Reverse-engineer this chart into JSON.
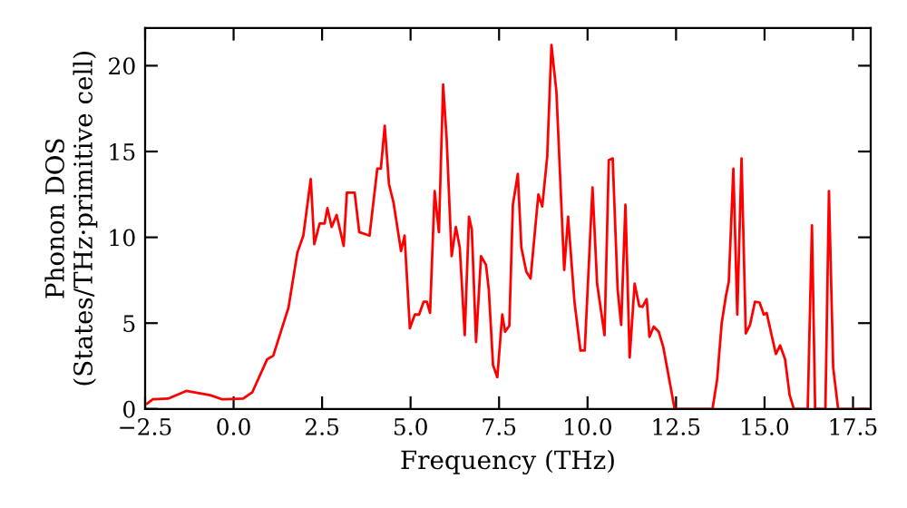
{
  "chart_data": {
    "type": "line",
    "xlabel": "Frequency (THz)",
    "ylabel": "Phonon DOS\n(States/THz·primitive cell)",
    "xlim": [
      -2.5,
      18
    ],
    "ylim": [
      0,
      22.2
    ],
    "xticks": [
      {
        "value": -2.5,
        "label": "−2.5"
      },
      {
        "value": 0,
        "label": "0.0"
      },
      {
        "value": 2.5,
        "label": "2.5"
      },
      {
        "value": 5,
        "label": "5.0"
      },
      {
        "value": 7.5,
        "label": "7.5"
      },
      {
        "value": 10,
        "label": "10.0"
      },
      {
        "value": 12.5,
        "label": "12.5"
      },
      {
        "value": 15,
        "label": "15.0"
      },
      {
        "value": 17.5,
        "label": "17.5"
      }
    ],
    "yticks": [
      0,
      5,
      10,
      15,
      20
    ],
    "grid": false,
    "legend": false,
    "line_style": "solid",
    "marker": "none",
    "series": [
      {
        "color": "#ff0000",
        "x": [
          -2.45,
          -2.28,
          -1.85,
          -1.34,
          -0.66,
          -0.32,
          0.27,
          0.53,
          0.95,
          1.12,
          1.55,
          1.8,
          1.97,
          2.18,
          2.28,
          2.43,
          2.57,
          2.65,
          2.77,
          2.91,
          3.11,
          3.2,
          3.42,
          3.55,
          3.84,
          4.06,
          4.16,
          4.27,
          4.39,
          4.52,
          4.73,
          4.83,
          4.98,
          5.12,
          5.24,
          5.37,
          5.46,
          5.55,
          5.68,
          5.8,
          5.92,
          6.02,
          6.16,
          6.28,
          6.39,
          6.53,
          6.65,
          6.73,
          6.85,
          6.99,
          7.13,
          7.21,
          7.33,
          7.45,
          7.59,
          7.67,
          7.79,
          7.89,
          8.03,
          8.13,
          8.27,
          8.39,
          8.61,
          8.72,
          8.86,
          8.98,
          9.12,
          9.34,
          9.45,
          9.63,
          9.8,
          9.92,
          10.14,
          10.27,
          10.48,
          10.6,
          10.71,
          10.85,
          10.95,
          11.07,
          11.19,
          11.33,
          11.46,
          11.55,
          11.67,
          11.75,
          11.87,
          12.01,
          12.14,
          12.31,
          12.46,
          13.53,
          13.66,
          13.79,
          13.91,
          13.99,
          14.12,
          14.23,
          14.35,
          14.47,
          14.59,
          14.73,
          14.86,
          14.98,
          15.06,
          15.2,
          15.32,
          15.44,
          15.58,
          15.71,
          15.83,
          16.09,
          16.22,
          16.34,
          16.43,
          16.72,
          16.82,
          16.94,
          17.08,
          17.9
        ],
        "values": [
          0.3,
          0.56,
          0.6,
          1.05,
          0.8,
          0.56,
          0.6,
          0.98,
          2.9,
          3.1,
          5.9,
          9.1,
          10.1,
          13.4,
          9.6,
          10.8,
          10.8,
          11.7,
          10.6,
          11.3,
          9.5,
          12.6,
          12.6,
          10.3,
          10.1,
          14.0,
          14.0,
          16.5,
          13.1,
          12.0,
          9.2,
          10.1,
          4.7,
          5.5,
          5.5,
          6.25,
          6.25,
          5.6,
          12.7,
          10.3,
          18.9,
          15.7,
          8.9,
          10.6,
          9.4,
          4.3,
          11.2,
          10.45,
          3.9,
          8.9,
          8.4,
          6.95,
          2.55,
          1.85,
          5.5,
          4.5,
          4.85,
          11.9,
          13.7,
          9.4,
          8.0,
          7.6,
          12.5,
          11.8,
          14.7,
          21.2,
          18.5,
          8.1,
          11.2,
          6.25,
          3.4,
          3.4,
          12.9,
          7.3,
          4.3,
          14.5,
          14.6,
          6.95,
          4.9,
          11.9,
          3.0,
          7.3,
          6.0,
          5.95,
          6.4,
          4.2,
          4.8,
          4.5,
          3.6,
          1.7,
          0,
          0,
          1.7,
          5.0,
          6.6,
          7.4,
          14.0,
          5.5,
          14.6,
          4.4,
          4.9,
          6.25,
          6.2,
          5.5,
          5.6,
          4.3,
          3.2,
          3.7,
          2.9,
          0.8,
          0,
          0,
          0,
          10.7,
          0,
          0,
          12.7,
          2.4,
          0,
          0
        ]
      }
    ]
  }
}
